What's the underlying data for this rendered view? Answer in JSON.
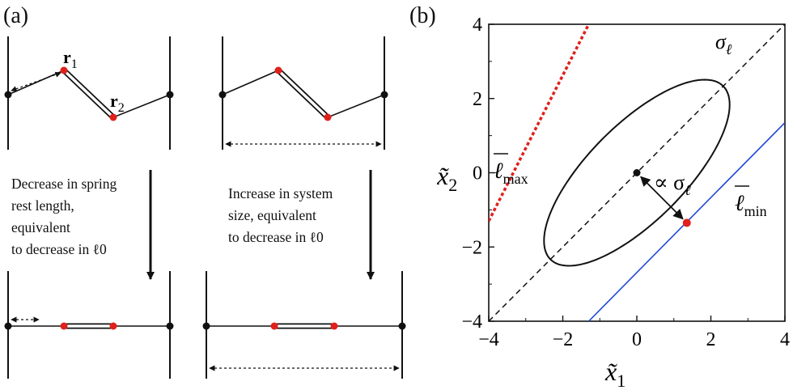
{
  "panel_a": {
    "label": "(a)",
    "r1": "r",
    "r1_sub": "1",
    "r2": "r",
    "r2_sub": "2",
    "caption_left": [
      "Decrease in spring",
      "rest length,",
      "equivalent",
      "to decrease in ℓ0"
    ],
    "caption_right": [
      "Increase in system",
      "size, equivalent",
      "to decrease in ℓ0"
    ]
  },
  "panel_b": {
    "label": "(b)",
    "x_ticks": [
      "−4",
      "−2",
      "0",
      "2",
      "4"
    ],
    "y_ticks": [
      "4",
      "2",
      "0",
      "−2",
      "−4"
    ],
    "x_label": "x̃",
    "x_label_sub": "1",
    "y_label": "x̃",
    "y_label_sub": "2",
    "sigma_label": "σ",
    "sigma_sub": "ℓ",
    "prop_label": "∝ σ",
    "prop_sub": "ℓ",
    "lmax_label": "ℓ",
    "lmax_sub": "max",
    "lmin_label": "ℓ",
    "lmin_sub": "min",
    "colors": {
      "max_line": "#e0201b",
      "min_line": "#1f49d6",
      "point": "#e0201b"
    }
  },
  "chart_data": {
    "type": "line",
    "xlim": [
      -4,
      4
    ],
    "ylim": [
      -4,
      4
    ],
    "xlabel": "x̃1",
    "ylabel": "x̃2",
    "ellipse": {
      "center": [
        0,
        0
      ],
      "axis_angle_deg": 45,
      "semi_major": 3.3,
      "semi_minor": 1.3
    },
    "series": [
      {
        "name": "diagonal",
        "x": [
          -4,
          4
        ],
        "y": [
          -4,
          4
        ],
        "style": "dashed"
      },
      {
        "name": "ℓmax",
        "x": [
          -4,
          -1.3
        ],
        "y": [
          -1.3,
          4
        ],
        "style": "dotted",
        "color": "#e0201b"
      },
      {
        "name": "ℓmin",
        "x": [
          -1.3,
          4
        ],
        "y": [
          -4,
          1.35
        ],
        "style": "solid",
        "color": "#1f49d6"
      }
    ],
    "points": [
      {
        "x": 0,
        "y": 0
      },
      {
        "x": 1.35,
        "y": -1.35
      }
    ]
  }
}
